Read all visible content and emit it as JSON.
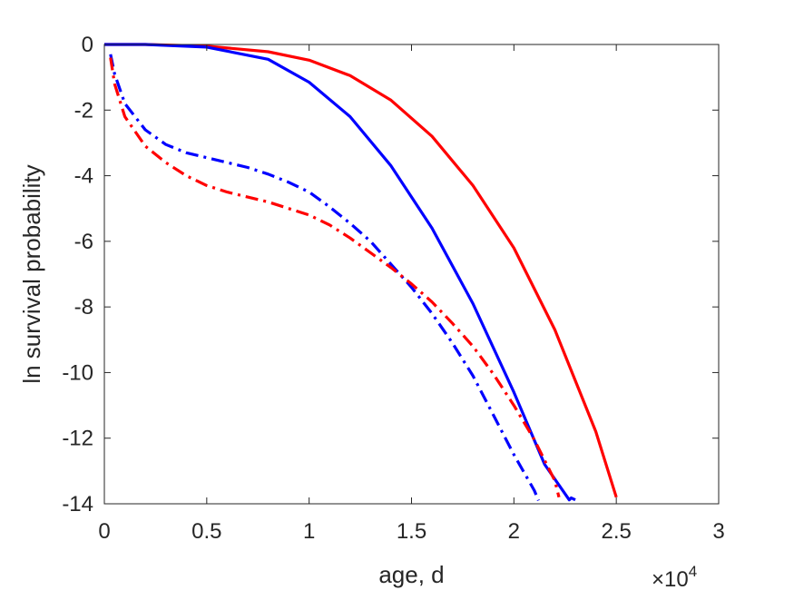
{
  "chart_data": {
    "type": "line",
    "title": "",
    "xlabel": "age, d",
    "ylabel": "ln survival probability",
    "x_exponent_label": "×10",
    "x_exponent_power": "4",
    "xlim": [
      0,
      30000
    ],
    "ylim": [
      -14,
      0
    ],
    "x_ticks": [
      0,
      5000,
      10000,
      15000,
      20000,
      25000,
      30000
    ],
    "x_tick_labels": [
      "0",
      "0.5",
      "1",
      "1.5",
      "2",
      "2.5",
      "3"
    ],
    "y_ticks": [
      0,
      -2,
      -4,
      -6,
      -8,
      -10,
      -12,
      -14
    ],
    "y_tick_labels": [
      "0",
      "-2",
      "-4",
      "-6",
      "-8",
      "-10",
      "-12",
      "-14"
    ],
    "grid": false,
    "legend": "none",
    "series": [
      {
        "color": "#ff0000",
        "style": "solid",
        "x": [
          0,
          2000,
          5000,
          8000,
          10000,
          12000,
          14000,
          16000,
          18000,
          20000,
          22000,
          24000,
          25000
        ],
        "y": [
          0,
          0,
          -0.05,
          -0.22,
          -0.48,
          -0.95,
          -1.7,
          -2.8,
          -4.3,
          -6.2,
          -8.7,
          -11.8,
          -13.8
        ]
      },
      {
        "color": "#0000ff",
        "style": "solid",
        "x": [
          0,
          2000,
          5000,
          8000,
          10000,
          12000,
          14000,
          16000,
          18000,
          20000,
          21500,
          22500,
          22700,
          22800,
          23000
        ],
        "y": [
          0,
          0,
          -0.08,
          -0.45,
          -1.15,
          -2.2,
          -3.7,
          -5.6,
          -7.9,
          -10.6,
          -12.8,
          -13.7,
          -13.88,
          -13.82,
          -13.88
        ]
      },
      {
        "color": "#0000ff",
        "style": "dashdot",
        "x": [
          300,
          500,
          1000,
          2000,
          3000,
          4000,
          5000,
          6000,
          7000,
          8000,
          9000,
          10000,
          11000,
          12000,
          13000,
          14000,
          15000,
          16000,
          17000,
          18000,
          19000,
          20000,
          21000,
          21200
        ],
        "y": [
          -0.3,
          -0.9,
          -1.8,
          -2.6,
          -3.05,
          -3.3,
          -3.45,
          -3.6,
          -3.75,
          -3.95,
          -4.2,
          -4.5,
          -4.95,
          -5.45,
          -6.0,
          -6.7,
          -7.4,
          -8.2,
          -9.1,
          -10.1,
          -11.3,
          -12.5,
          -13.6,
          -13.9
        ]
      },
      {
        "color": "#ff0000",
        "style": "dashdot",
        "x": [
          300,
          500,
          1000,
          2000,
          3000,
          4000,
          5000,
          6000,
          7000,
          8000,
          9000,
          10000,
          11000,
          12000,
          13000,
          14000,
          15000,
          16000,
          17000,
          18000,
          19000,
          20000,
          21000,
          22000,
          22200
        ],
        "y": [
          -0.4,
          -1.2,
          -2.2,
          -3.1,
          -3.6,
          -4.0,
          -4.3,
          -4.5,
          -4.65,
          -4.8,
          -5.0,
          -5.2,
          -5.5,
          -5.9,
          -6.35,
          -6.8,
          -7.3,
          -7.85,
          -8.5,
          -9.2,
          -10.05,
          -11.0,
          -12.05,
          -13.3,
          -13.8
        ]
      }
    ]
  }
}
